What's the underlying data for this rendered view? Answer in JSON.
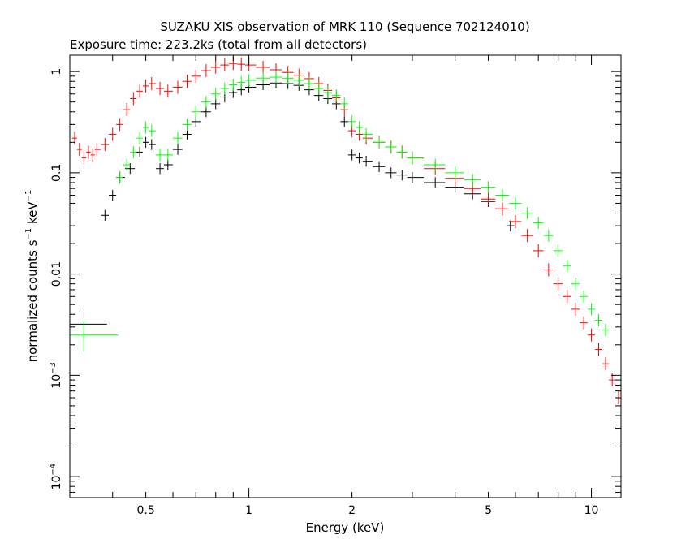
{
  "chart_data": {
    "type": "scatter",
    "title": "SUZAKU XIS observation of MRK 110 (Sequence 702124010)",
    "subtitle": "Exposure time: 223.2ks (total from all detectors)",
    "xlabel": "Energy (keV)",
    "ylabel": "normalized counts s^-1 keV^-1",
    "ylabel_parts": {
      "a": "normalized counts s",
      "b": "−1",
      "c": " keV",
      "d": "−1"
    },
    "x_scale": "log",
    "y_scale": "log",
    "xlim": [
      0.3,
      12.2
    ],
    "ylim": [
      6.2e-05,
      1.45
    ],
    "x_ticks": [
      {
        "value": 0.5,
        "label": "0.5"
      },
      {
        "value": 1,
        "label": "1"
      },
      {
        "value": 2,
        "label": "2"
      },
      {
        "value": 5,
        "label": "5"
      },
      {
        "value": 10,
        "label": "10"
      }
    ],
    "y_ticks": [
      {
        "value": 1,
        "label": "1"
      },
      {
        "value": 0.1,
        "label": "0.1"
      },
      {
        "value": 0.01,
        "label": "0.01"
      },
      {
        "value": 0.001,
        "label_base": "10",
        "label_exp": "−3"
      },
      {
        "value": 0.0001,
        "label_base": "10",
        "label_exp": "−4"
      }
    ],
    "grid": false,
    "legend": "none",
    "series": [
      {
        "color": "#000000",
        "x": [
          0.38,
          0.4,
          0.42,
          0.45,
          0.48,
          0.5,
          0.52,
          0.55,
          0.58,
          0.62,
          0.66,
          0.7,
          0.75,
          0.8,
          0.85,
          0.9,
          0.95,
          1.0,
          1.1,
          1.2,
          1.3,
          1.4,
          1.5,
          1.6,
          1.7,
          1.8,
          1.9,
          2.0,
          2.1,
          2.2,
          2.4,
          2.6,
          2.8,
          3.0,
          3.5,
          4.0,
          4.5,
          5.0,
          5.5,
          5.8
        ],
        "y": [
          0.038,
          0.06,
          0.09,
          0.11,
          0.16,
          0.2,
          0.19,
          0.11,
          0.12,
          0.17,
          0.24,
          0.32,
          0.4,
          0.48,
          0.56,
          0.62,
          0.66,
          0.7,
          0.74,
          0.77,
          0.76,
          0.73,
          0.66,
          0.58,
          0.54,
          0.48,
          0.32,
          0.15,
          0.14,
          0.13,
          0.115,
          0.1,
          0.095,
          0.09,
          0.08,
          0.072,
          0.062,
          0.052,
          0.044,
          0.03
        ],
        "yerr_frac": 0.13
      },
      {
        "color": "#ff0000",
        "x": [
          0.3,
          0.31,
          0.32,
          0.33,
          0.34,
          0.35,
          0.36,
          0.38,
          0.4,
          0.42,
          0.44,
          0.46,
          0.48,
          0.5,
          0.52,
          0.55,
          0.58,
          0.62,
          0.66,
          0.7,
          0.75,
          0.8,
          0.85,
          0.9,
          0.95,
          1.0,
          1.1,
          1.2,
          1.3,
          1.4,
          1.5,
          1.6,
          1.7,
          1.8,
          1.9,
          2.0,
          2.1,
          2.2,
          2.4,
          2.6,
          2.8,
          3.0,
          3.5,
          4.0,
          4.5,
          5.0,
          5.5,
          6.0,
          6.5,
          7.0,
          7.5,
          8.0,
          8.5,
          9.0,
          9.5,
          10.0,
          10.5,
          11.0,
          11.5,
          12.0
        ],
        "y": [
          0.3,
          0.22,
          0.17,
          0.14,
          0.16,
          0.15,
          0.17,
          0.19,
          0.24,
          0.3,
          0.42,
          0.54,
          0.64,
          0.72,
          0.76,
          0.68,
          0.64,
          0.7,
          0.8,
          0.9,
          1.02,
          1.1,
          1.16,
          1.2,
          1.18,
          1.16,
          1.1,
          1.04,
          0.98,
          0.92,
          0.85,
          0.76,
          0.65,
          0.55,
          0.42,
          0.26,
          0.24,
          0.22,
          0.2,
          0.18,
          0.16,
          0.14,
          0.11,
          0.088,
          0.07,
          0.055,
          0.044,
          0.033,
          0.024,
          0.017,
          0.011,
          0.008,
          0.006,
          0.0045,
          0.0033,
          0.0025,
          0.0018,
          0.0013,
          0.0009,
          0.0006
        ],
        "yerr_frac": 0.16
      },
      {
        "color": "#00ff00",
        "x": [
          0.42,
          0.44,
          0.46,
          0.48,
          0.5,
          0.52,
          0.55,
          0.58,
          0.62,
          0.66,
          0.7,
          0.75,
          0.8,
          0.85,
          0.9,
          0.95,
          1.0,
          1.1,
          1.2,
          1.3,
          1.4,
          1.5,
          1.6,
          1.7,
          1.8,
          1.9,
          2.0,
          2.1,
          2.2,
          2.4,
          2.6,
          2.8,
          3.0,
          3.5,
          4.0,
          4.5,
          5.0,
          5.5,
          6.0,
          6.5,
          7.0,
          7.5,
          8.0,
          8.5,
          9.0,
          9.5,
          10.0,
          10.5,
          11.0
        ],
        "y": [
          0.09,
          0.12,
          0.16,
          0.22,
          0.28,
          0.26,
          0.15,
          0.15,
          0.22,
          0.3,
          0.4,
          0.5,
          0.6,
          0.68,
          0.74,
          0.78,
          0.82,
          0.86,
          0.88,
          0.86,
          0.82,
          0.76,
          0.68,
          0.62,
          0.58,
          0.48,
          0.32,
          0.28,
          0.24,
          0.2,
          0.18,
          0.16,
          0.14,
          0.12,
          0.1,
          0.085,
          0.072,
          0.06,
          0.05,
          0.04,
          0.032,
          0.024,
          0.017,
          0.012,
          0.008,
          0.006,
          0.0045,
          0.0035,
          0.0028
        ],
        "yerr_frac": 0.15
      }
    ],
    "isolated_points": [
      {
        "color": "#000000",
        "x": 0.33,
        "x_lo": 0.3,
        "x_hi": 0.385,
        "y": 0.0032,
        "y_lo": 0.0022,
        "y_hi": 0.0045
      },
      {
        "color": "#00ff00",
        "x": 0.33,
        "x_lo": 0.3,
        "x_hi": 0.415,
        "y": 0.0025,
        "y_lo": 0.0017,
        "y_hi": 0.0035
      }
    ]
  }
}
